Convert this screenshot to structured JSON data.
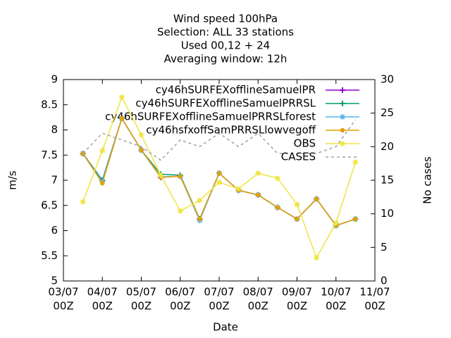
{
  "chart_data": {
    "type": "line",
    "title": [
      "Wind speed 100hPa",
      "Selection: ALL      33 stations",
      "Used  00,12  + 24",
      "Averaging window: 12h"
    ],
    "xlabel": "Date",
    "ylabel": "m/s",
    "y2label": "No cases",
    "x": [
      12,
      24,
      36,
      48,
      60,
      72,
      84,
      96,
      108,
      120,
      132,
      144,
      156,
      168,
      180
    ],
    "xlim": [
      0,
      192
    ],
    "xticks": [
      {
        "value": 0,
        "label": [
          "03/07",
          "00Z"
        ]
      },
      {
        "value": 24,
        "label": [
          "04/07",
          "00Z"
        ]
      },
      {
        "value": 48,
        "label": [
          "05/07",
          "00Z"
        ]
      },
      {
        "value": 72,
        "label": [
          "06/07",
          "00Z"
        ]
      },
      {
        "value": 96,
        "label": [
          "07/07",
          "00Z"
        ]
      },
      {
        "value": 120,
        "label": [
          "08/07",
          "00Z"
        ]
      },
      {
        "value": 144,
        "label": [
          "09/07",
          "00Z"
        ]
      },
      {
        "value": 168,
        "label": [
          "10/07",
          "00Z"
        ]
      },
      {
        "value": 192,
        "label": [
          "11/07",
          "00Z"
        ]
      }
    ],
    "ylim": [
      5,
      9
    ],
    "yticks": [
      5,
      5.5,
      6,
      6.5,
      7,
      7.5,
      8,
      8.5,
      9
    ],
    "y2lim": [
      0,
      30
    ],
    "y2ticks": [
      0,
      5,
      10,
      15,
      20,
      25,
      30
    ],
    "series": [
      {
        "name": "cy46hSURFEXofflineSamuelPR",
        "color": "#9400d3",
        "marker": "plus",
        "values": [
          7.53,
          7.0,
          8.23,
          7.6,
          7.06,
          7.08,
          6.23,
          7.14,
          6.8,
          6.71,
          6.46,
          6.23,
          6.63,
          6.1,
          6.23
        ]
      },
      {
        "name": "cy46hSURFEXofflineSamuelPRRSL",
        "color": "#009e73",
        "marker": "plus",
        "values": [
          7.53,
          7.0,
          8.23,
          7.6,
          7.12,
          7.1,
          6.23,
          7.14,
          6.8,
          6.71,
          6.46,
          6.23,
          6.63,
          6.1,
          6.23
        ]
      },
      {
        "name": "cy46hSURFEXofflineSamuelPRRSLforest",
        "color": "#56b4e9",
        "marker": "star",
        "values": [
          7.53,
          6.97,
          8.23,
          7.6,
          7.07,
          7.08,
          6.2,
          7.14,
          6.8,
          6.71,
          6.46,
          6.23,
          6.63,
          6.1,
          6.23
        ]
      },
      {
        "name": "cy46hsfxoffSamPRRSLlowvegoff",
        "color": "#e69f00",
        "marker": "dot",
        "values": [
          7.53,
          6.94,
          8.23,
          7.6,
          7.06,
          7.08,
          6.23,
          7.14,
          6.8,
          6.71,
          6.46,
          6.23,
          6.63,
          6.1,
          6.23
        ]
      },
      {
        "name": "OBS",
        "color": "#f0e442",
        "marker": "star",
        "values": [
          6.57,
          7.59,
          8.65,
          7.9,
          7.1,
          6.39,
          6.6,
          6.96,
          6.83,
          7.14,
          7.04,
          6.52,
          5.46,
          6.15,
          7.36
        ]
      },
      {
        "name": "CASES",
        "color": "#a0a0a0",
        "marker": "none",
        "dash": true,
        "axis": "y2",
        "values": [
          19,
          22,
          21,
          20,
          18,
          21,
          20,
          22,
          20,
          22,
          19,
          19,
          19,
          20,
          24
        ]
      }
    ]
  }
}
